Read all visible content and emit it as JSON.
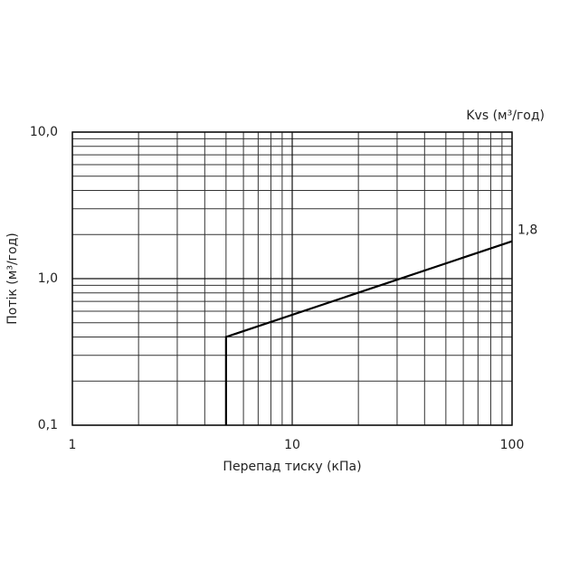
{
  "chart_data": {
    "type": "line",
    "x_label": "Перепад тиску (кПа)",
    "y_label": "Потік (м³/год)",
    "x_scale": "log",
    "y_scale": "log",
    "xlim": [
      1,
      100
    ],
    "ylim": [
      0.1,
      10
    ],
    "xticks": [
      1,
      10,
      100
    ],
    "yticks": [
      {
        "value": 0.1,
        "label": "0,1"
      },
      {
        "value": 1,
        "label": "1,0"
      },
      {
        "value": 10,
        "label": "10,0"
      }
    ],
    "grid": true,
    "minor_grid": true,
    "x": [
      5,
      5,
      100
    ],
    "series": [
      {
        "name": "Kvs (м³/год)",
        "color": "#000000",
        "values": [
          0.1,
          0.4,
          1.8
        ],
        "value_labels": [
          null,
          null,
          "1,8"
        ]
      }
    ]
  }
}
